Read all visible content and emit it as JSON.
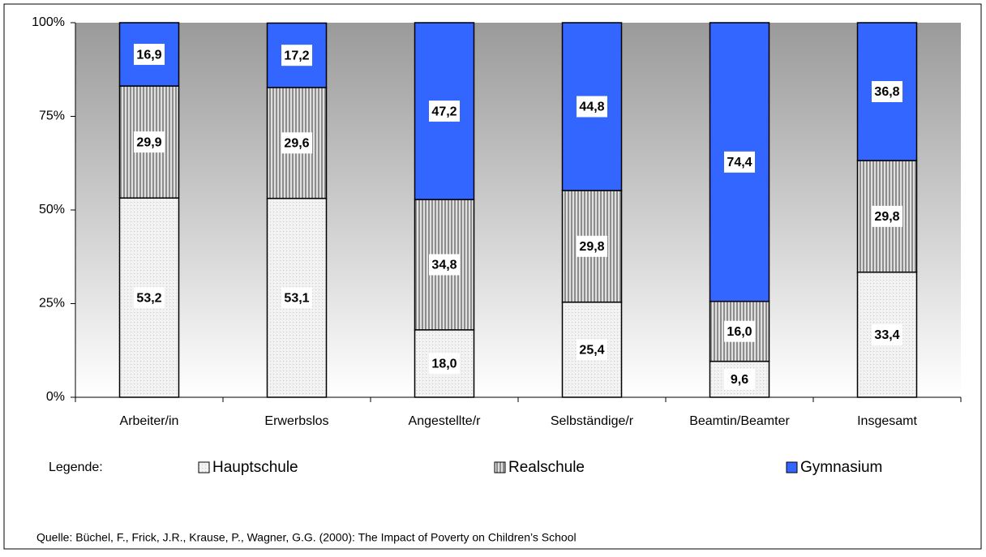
{
  "chart_data": {
    "type": "bar",
    "stacked": true,
    "categories": [
      "Arbeiter/in",
      "Erwerbslos",
      "Angestellte/r",
      "Selbständige/r",
      "Beamtin/Beamter",
      "Insgesamt"
    ],
    "series": [
      {
        "name": "Hauptschule",
        "color": "#f2f2f2",
        "values": [
          53.2,
          53.1,
          18.0,
          25.4,
          9.6,
          33.4
        ],
        "value_labels": [
          "53,2",
          "53,1",
          "18,0",
          "25,4",
          "9,6",
          "33,4"
        ]
      },
      {
        "name": "Realschule",
        "color": "#8c8c8c",
        "values": [
          29.9,
          29.6,
          34.8,
          29.8,
          16.0,
          29.8
        ],
        "value_labels": [
          "29,9",
          "29,6",
          "34,8",
          "29,8",
          "16,0",
          "29,8"
        ]
      },
      {
        "name": "Gymnasium",
        "color": "#3366ff",
        "values": [
          16.9,
          17.2,
          47.2,
          44.8,
          74.4,
          36.8
        ],
        "value_labels": [
          "16,9",
          "17,2",
          "47,2",
          "44,8",
          "74,4",
          "36,8"
        ]
      }
    ],
    "ylim": [
      0,
      100
    ],
    "yticks": [
      {
        "value": 0,
        "label": "0%"
      },
      {
        "value": 25,
        "label": "25%"
      },
      {
        "value": 50,
        "label": "50%"
      },
      {
        "value": 75,
        "label": "75%"
      },
      {
        "value": 100,
        "label": "100%"
      }
    ],
    "grid": false,
    "legend_title": "Legende:",
    "source": "Quelle: Büchel, F., Frick, J.R., Krause, P., Wagner, G.G. (2000): The Impact of Poverty on Children’s School"
  }
}
